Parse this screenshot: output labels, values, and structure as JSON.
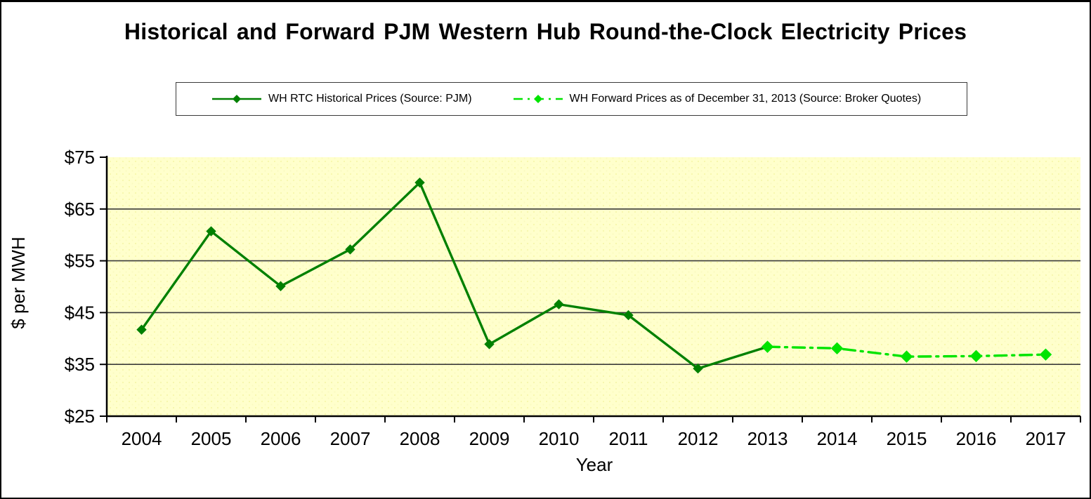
{
  "title": "Historical and Forward PJM Western Hub Round-the-Clock Electricity Prices",
  "legend": {
    "items": [
      {
        "label": "WH RTC Historical Prices (Source: PJM)",
        "color": "#008000",
        "style": "solid-diamond"
      },
      {
        "label": "WH Forward Prices as of December 31, 2013 (Source: Broker Quotes)",
        "color": "#00E400",
        "style": "dashdot-diamond"
      }
    ]
  },
  "chart_data": {
    "type": "line",
    "title": "Historical and Forward PJM Western Hub Round-the-Clock Electricity Prices",
    "xlabel": "Year",
    "ylabel": "$ per MWH",
    "x": [
      2004,
      2005,
      2006,
      2007,
      2008,
      2009,
      2010,
      2011,
      2012,
      2013,
      2014,
      2015,
      2016,
      2017
    ],
    "series": [
      {
        "name": "WH RTC Historical Prices (Source: PJM)",
        "color": "#008000",
        "line_style": "solid",
        "marker": "diamond",
        "x": [
          2004,
          2005,
          2006,
          2007,
          2008,
          2009,
          2010,
          2011,
          2012,
          2013
        ],
        "values": [
          41.7,
          60.7,
          50.1,
          57.2,
          70.1,
          38.9,
          46.6,
          44.5,
          34.2,
          38.4
        ]
      },
      {
        "name": "WH Forward Prices as of December 31, 2013 (Source: Broker Quotes)",
        "color": "#00E400",
        "line_style": "dash-dot",
        "marker": "diamond",
        "x": [
          2013,
          2014,
          2015,
          2016,
          2017
        ],
        "values": [
          38.4,
          38.1,
          36.5,
          36.6,
          36.9
        ]
      }
    ],
    "ylim": [
      25,
      75
    ],
    "yticks": [
      25,
      35,
      45,
      55,
      65,
      75
    ],
    "ytick_labels": [
      "$25",
      "$35",
      "$45",
      "$55",
      "$65",
      "$75"
    ],
    "gridlines": [
      35,
      45,
      55,
      65
    ],
    "plot_bg": "#FFFFCC",
    "grid_color": "#3a3a3a",
    "legend_position": "top",
    "grid": true
  }
}
